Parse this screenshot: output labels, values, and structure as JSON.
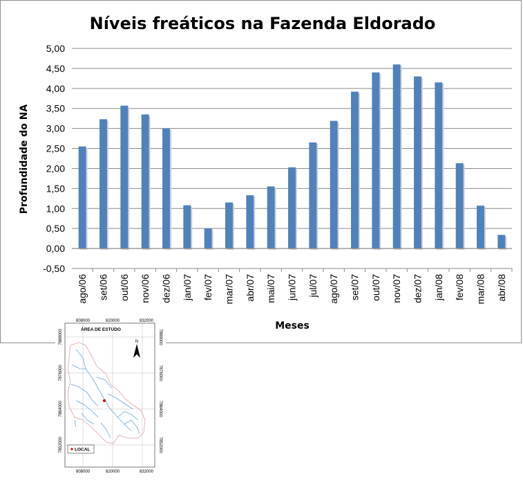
{
  "chart_data": {
    "type": "bar",
    "title": "Níveis freáticos na Fazenda Eldorado",
    "xlabel": "Meses",
    "ylabel": "Profundidade do NA",
    "ylim": [
      -0.5,
      5.0
    ],
    "grid": true,
    "legend": "none",
    "bar_color": "#4f81bd",
    "y_ticks": [
      "-0,50",
      "0,00",
      "0,50",
      "1,00",
      "1,50",
      "2,00",
      "2,50",
      "3,00",
      "3,50",
      "4,00",
      "4,50",
      "5,00"
    ],
    "y_tick_values": [
      -0.5,
      0,
      0.5,
      1.0,
      1.5,
      2.0,
      2.5,
      3.0,
      3.5,
      4.0,
      4.5,
      5.0
    ],
    "categories": [
      "ago/06",
      "set/06",
      "out/06",
      "nov/06",
      "dez/06",
      "jan/07",
      "fev/07",
      "mar/07",
      "abr/07",
      "mai/07",
      "jun/07",
      "jul/07",
      "ago/07",
      "set/07",
      "out/07",
      "nov/07",
      "dez/07",
      "jan/08",
      "fev/08",
      "mar/08",
      "abr/08"
    ],
    "values": [
      2.55,
      3.23,
      3.57,
      3.35,
      3.0,
      1.08,
      0.5,
      1.15,
      1.33,
      1.55,
      2.03,
      2.65,
      3.19,
      3.92,
      4.4,
      4.6,
      4.3,
      4.15,
      2.13,
      1.07,
      0.34
    ]
  },
  "map": {
    "title": "ÁREA DE ESTUDO",
    "north_label": "N",
    "legend_label": "LOCAL",
    "x_ticks": [
      "808000",
      "820000",
      "832000"
    ],
    "y_ticks": [
      "7888000",
      "7876000",
      "7864000",
      "7852000"
    ],
    "outline_color": "#d9a0a8",
    "river_color": "#6aa8d8",
    "marker_color": "#cc0000"
  }
}
